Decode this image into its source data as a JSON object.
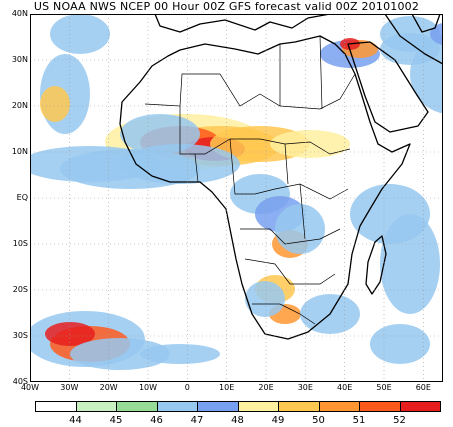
{
  "title": "US NOAA NWS NCEP 00 Hour 00Z GFS forecast valid 00Z 20101002",
  "map": {
    "lon_range": [
      -40,
      65
    ],
    "lat_range": [
      -40,
      40
    ],
    "lat_ticks": [
      {
        "value": 40,
        "label": "40N"
      },
      {
        "value": 30,
        "label": "30N"
      },
      {
        "value": 20,
        "label": "20N"
      },
      {
        "value": 10,
        "label": "10N"
      },
      {
        "value": 0,
        "label": "EQ"
      },
      {
        "value": -10,
        "label": "10S"
      },
      {
        "value": -20,
        "label": "20S"
      },
      {
        "value": -30,
        "label": "30S"
      },
      {
        "value": -40,
        "label": "40S"
      }
    ],
    "lon_ticks": [
      {
        "value": -40,
        "label": "40W"
      },
      {
        "value": -30,
        "label": "30W"
      },
      {
        "value": -20,
        "label": "20W"
      },
      {
        "value": -10,
        "label": "10W"
      },
      {
        "value": 0,
        "label": "0"
      },
      {
        "value": 10,
        "label": "10E"
      },
      {
        "value": 20,
        "label": "20E"
      },
      {
        "value": 30,
        "label": "30E"
      },
      {
        "value": 40,
        "label": "40E"
      },
      {
        "value": 50,
        "label": "50E"
      },
      {
        "value": 60,
        "label": "60E"
      }
    ],
    "grid": true
  },
  "legend": {
    "colors": [
      "#ffffff",
      "#c8f0c0",
      "#96dc96",
      "#96c8f0",
      "#78a0f0",
      "#fff0a0",
      "#ffc850",
      "#ff9632",
      "#ff5a1e",
      "#e61e1e"
    ],
    "labels": [
      "44",
      "45",
      "46",
      "47",
      "48",
      "49",
      "50",
      "51",
      "52"
    ]
  }
}
